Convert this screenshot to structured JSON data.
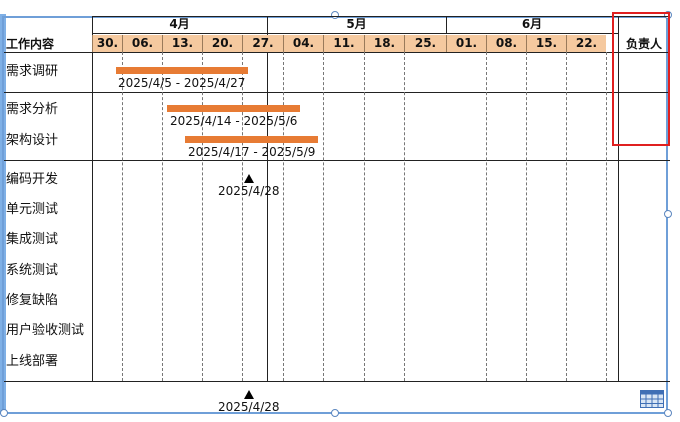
{
  "header": {
    "task_col_title": "工作内容",
    "owner_col_title": "负责人",
    "months": [
      "4月",
      "5月",
      "6月"
    ],
    "weeks": [
      "30.",
      "06.",
      "13.",
      "20.",
      "27.",
      "04.",
      "11.",
      "18.",
      "25.",
      "01.",
      "08.",
      "15.",
      "22."
    ]
  },
  "tasks": [
    {
      "name": "需求调研",
      "bar_label": "2025/4/5 - 2025/4/27"
    },
    {
      "name": "需求分析",
      "bar_label": "2025/4/14 - 2025/5/6"
    },
    {
      "name": "架构设计",
      "bar_label": "2025/4/17 - 2025/5/9"
    },
    {
      "name": "编码开发",
      "milestone_label": "2025/4/28"
    },
    {
      "name": "单元测试"
    },
    {
      "name": "集成测试"
    },
    {
      "name": "系统测试"
    },
    {
      "name": "修复缺陷"
    },
    {
      "name": "用户验收测试"
    },
    {
      "name": "上线部署"
    }
  ],
  "footer": {
    "milestone_label": "2025/4/28"
  },
  "colors": {
    "bar": "#e77b34",
    "week_header": "#f5c99f",
    "selection": "#6f9fd8",
    "highlight": "#e02020"
  },
  "icons": {
    "corner": "table-grid-icon"
  }
}
